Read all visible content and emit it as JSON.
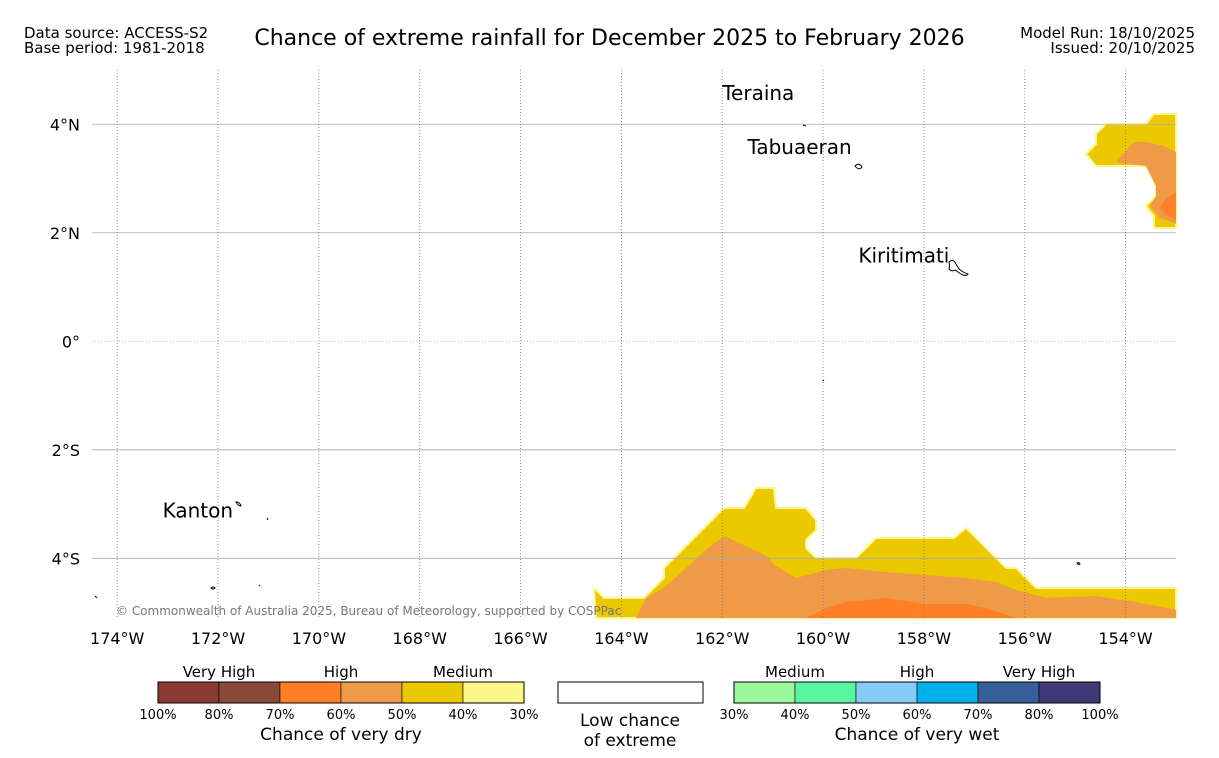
{
  "header": {
    "data_source": "Data source: ACCESS-S2",
    "base_period": "Base period: 1981-2018",
    "title": "Chance of extreme rainfall for December 2025 to February 2026",
    "model_run": "Model Run: 18/10/2025",
    "issued": "Issued: 20/10/2025"
  },
  "map": {
    "lon_range": [
      -174.5,
      -153
    ],
    "lat_range": [
      -5.1,
      5
    ],
    "lat_ticks": [
      {
        "value": 4,
        "label": "4°N"
      },
      {
        "value": 2,
        "label": "2°N"
      },
      {
        "value": 0,
        "label": "0°"
      },
      {
        "value": -2,
        "label": "2°S"
      },
      {
        "value": -4,
        "label": "4°S"
      }
    ],
    "lon_ticks": [
      {
        "value": -174,
        "label": "174°W"
      },
      {
        "value": -172,
        "label": "172°W"
      },
      {
        "value": -170,
        "label": "170°W"
      },
      {
        "value": -168,
        "label": "168°W"
      },
      {
        "value": -166,
        "label": "166°W"
      },
      {
        "value": -164,
        "label": "164°W"
      },
      {
        "value": -162,
        "label": "162°W"
      },
      {
        "value": -160,
        "label": "160°W"
      },
      {
        "value": -158,
        "label": "158°W"
      },
      {
        "value": -156,
        "label": "156°W"
      },
      {
        "value": -154,
        "label": "154°W"
      }
    ],
    "places": [
      {
        "name": "Teraina",
        "lon": -162.0,
        "lat": 4.45
      },
      {
        "name": "Tabuaeran",
        "lon": -161.5,
        "lat": 3.45
      },
      {
        "name": "Kiritimati",
        "lon": -159.3,
        "lat": 1.45
      },
      {
        "name": "Kanton",
        "lon": -173.1,
        "lat": -3.25
      }
    ],
    "copyright": "© Commonwealth of Australia 2025, Bureau of Meteorology, supported by COSPPac",
    "colors": {
      "dry_40_50": "#ecc800",
      "dry_50_60": "#ee9a46",
      "dry_60_70": "#ff7f27",
      "land_outline": "#000000"
    }
  },
  "legend": {
    "dry": {
      "group_labels": [
        "Very High",
        "High",
        "Medium"
      ],
      "colors": [
        "#8b3a32",
        "#894a3a",
        "#ff7f27",
        "#ee9a46",
        "#ecc800",
        "#fff68a"
      ],
      "ticks": [
        "100%",
        "80%",
        "70%",
        "60%",
        "50%",
        "40%",
        "30%"
      ],
      "title": "Chance of very dry"
    },
    "neutral": {
      "line1": "Low chance",
      "line2": "of extreme"
    },
    "wet": {
      "group_labels": [
        "Medium",
        "High",
        "Very High"
      ],
      "colors": [
        "#9bf79b",
        "#5af5a0",
        "#86cbf6",
        "#00b0ea",
        "#365f9a",
        "#3d3a76"
      ],
      "ticks": [
        "30%",
        "40%",
        "50%",
        "60%",
        "70%",
        "80%",
        "100%"
      ],
      "title": "Chance of very wet"
    }
  }
}
